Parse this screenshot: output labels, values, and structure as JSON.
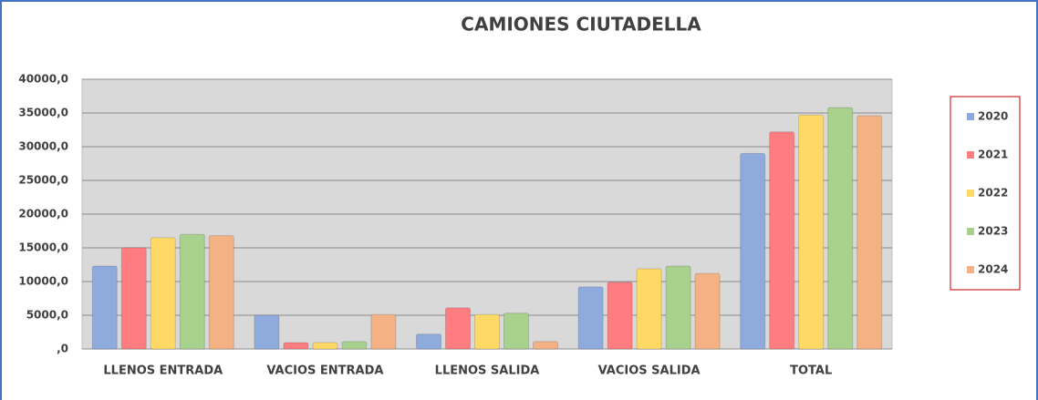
{
  "chart_data": {
    "type": "bar",
    "title": "CAMIONES CIUTADELLA",
    "categories": [
      "LLENOS ENTRADA",
      "VACIOS ENTRADA",
      "LLENOS SALIDA",
      "VACIOS SALIDA",
      "TOTAL"
    ],
    "series": [
      {
        "name": "2020",
        "color": "#8faadc",
        "values": [
          12300,
          5000,
          2200,
          9200,
          29000
        ]
      },
      {
        "name": "2021",
        "color": "#ff7c80",
        "values": [
          15000,
          950,
          6100,
          9900,
          32200
        ]
      },
      {
        "name": "2022",
        "color": "#ffd966",
        "values": [
          16500,
          950,
          5100,
          11900,
          34700
        ]
      },
      {
        "name": "2023",
        "color": "#a9d18e",
        "values": [
          17000,
          1100,
          5300,
          12300,
          35800
        ]
      },
      {
        "name": "2024",
        "color": "#f4b183",
        "values": [
          16800,
          5100,
          1100,
          11200,
          34600
        ]
      }
    ],
    "ylim": [
      0,
      40000
    ],
    "yticks": [
      {
        "value": 0,
        "label": ",0"
      },
      {
        "value": 5000,
        "label": "5000,0"
      },
      {
        "value": 10000,
        "label": "10000,0"
      },
      {
        "value": 15000,
        "label": "15000,0"
      },
      {
        "value": 20000,
        "label": "20000,0"
      },
      {
        "value": 25000,
        "label": "25000,0"
      },
      {
        "value": 30000,
        "label": "30000,0"
      },
      {
        "value": 35000,
        "label": "35000,0"
      },
      {
        "value": 40000,
        "label": "40000,0"
      }
    ],
    "grid": true,
    "legend": "right"
  }
}
